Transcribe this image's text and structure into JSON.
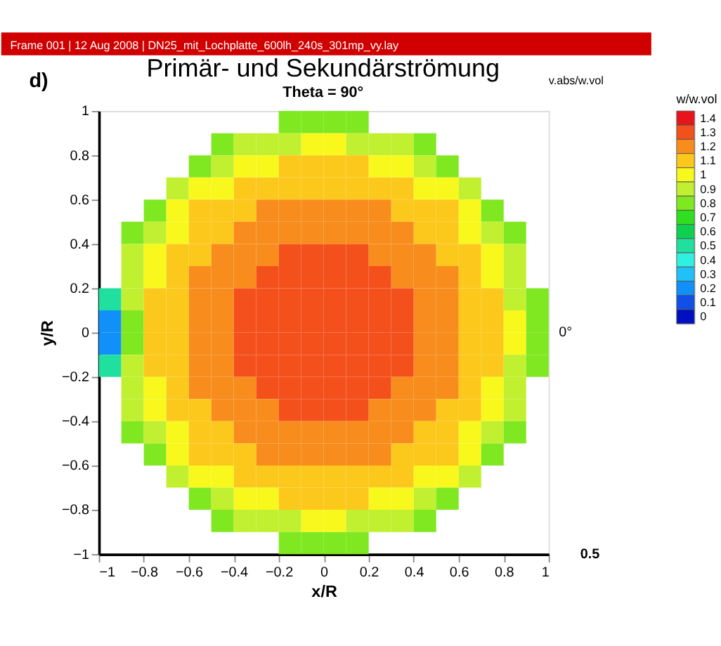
{
  "chart_data": {
    "type": "heatmap",
    "title": "Primär- und Sekundärströmung",
    "subtitle": "Theta = 90°",
    "xlabel": "x/R",
    "ylabel": "y/R",
    "clabel": "w/w.vol",
    "annotations": [
      "Frame 001 | 12 Aug 2008 | DN25_mit_Lochplatte_600lh_240s_301mp_vy.lay",
      "d)",
      "0°",
      "v.abs/w.vol",
      "0.5"
    ],
    "x": [
      -0.95,
      -0.85,
      -0.75,
      -0.65,
      -0.55,
      -0.45,
      -0.35,
      -0.25,
      -0.15,
      -0.05,
      0.05,
      0.15,
      0.25,
      0.35,
      0.45,
      0.55,
      0.65,
      0.75,
      0.85,
      0.95
    ],
    "y": [
      0.95,
      0.85,
      0.75,
      0.65,
      0.55,
      0.45,
      0.35,
      0.25,
      0.15,
      0.05,
      -0.05,
      -0.15,
      -0.25,
      -0.35,
      -0.45,
      -0.55,
      -0.65,
      -0.75,
      -0.85,
      -0.95
    ],
    "cells": [
      [
        null,
        null,
        null,
        null,
        null,
        null,
        null,
        null,
        0.8,
        0.8,
        0.8,
        0.8,
        null,
        null,
        null,
        null,
        null,
        null,
        null,
        null
      ],
      [
        null,
        null,
        null,
        null,
        null,
        0.8,
        0.9,
        0.9,
        0.9,
        1.0,
        1.0,
        0.9,
        0.9,
        0.9,
        0.8,
        null,
        null,
        null,
        null,
        null
      ],
      [
        null,
        null,
        null,
        null,
        0.8,
        0.9,
        1.0,
        1.0,
        1.1,
        1.1,
        1.1,
        1.1,
        1.0,
        1.0,
        0.9,
        0.8,
        null,
        null,
        null,
        null
      ],
      [
        null,
        null,
        null,
        0.9,
        1.0,
        1.0,
        1.1,
        1.1,
        1.1,
        1.1,
        1.1,
        1.1,
        1.1,
        1.1,
        1.0,
        1.0,
        0.9,
        null,
        null,
        null
      ],
      [
        null,
        null,
        0.8,
        1.0,
        1.1,
        1.1,
        1.1,
        1.2,
        1.2,
        1.2,
        1.2,
        1.2,
        1.2,
        1.1,
        1.1,
        1.1,
        1.0,
        0.8,
        null,
        null
      ],
      [
        null,
        0.8,
        0.9,
        1.0,
        1.1,
        1.1,
        1.2,
        1.2,
        1.2,
        1.2,
        1.2,
        1.2,
        1.2,
        1.2,
        1.1,
        1.1,
        1.0,
        0.9,
        0.8,
        null
      ],
      [
        null,
        0.9,
        1.0,
        1.1,
        1.1,
        1.2,
        1.2,
        1.2,
        1.3,
        1.3,
        1.3,
        1.3,
        1.2,
        1.2,
        1.2,
        1.1,
        1.1,
        1.0,
        0.9,
        null
      ],
      [
        null,
        0.9,
        1.0,
        1.1,
        1.2,
        1.2,
        1.2,
        1.3,
        1.3,
        1.3,
        1.3,
        1.3,
        1.3,
        1.2,
        1.2,
        1.2,
        1.1,
        1.0,
        0.9,
        null
      ],
      [
        0.5,
        0.9,
        1.1,
        1.1,
        1.2,
        1.2,
        1.3,
        1.3,
        1.3,
        1.3,
        1.3,
        1.3,
        1.3,
        1.3,
        1.2,
        1.2,
        1.1,
        1.1,
        0.9,
        0.8
      ],
      [
        0.2,
        0.8,
        1.1,
        1.1,
        1.2,
        1.2,
        1.3,
        1.3,
        1.3,
        1.3,
        1.3,
        1.3,
        1.3,
        1.3,
        1.2,
        1.2,
        1.1,
        1.1,
        1.0,
        0.8
      ],
      [
        0.2,
        0.8,
        1.1,
        1.1,
        1.2,
        1.2,
        1.3,
        1.3,
        1.3,
        1.3,
        1.3,
        1.3,
        1.3,
        1.3,
        1.2,
        1.2,
        1.1,
        1.1,
        1.0,
        0.8
      ],
      [
        0.5,
        0.9,
        1.1,
        1.1,
        1.2,
        1.2,
        1.3,
        1.3,
        1.3,
        1.3,
        1.3,
        1.3,
        1.3,
        1.3,
        1.2,
        1.2,
        1.1,
        1.1,
        0.9,
        0.8
      ],
      [
        null,
        0.9,
        1.0,
        1.1,
        1.2,
        1.2,
        1.2,
        1.3,
        1.3,
        1.3,
        1.3,
        1.3,
        1.3,
        1.2,
        1.2,
        1.2,
        1.1,
        1.0,
        0.9,
        null
      ],
      [
        null,
        0.9,
        1.0,
        1.1,
        1.1,
        1.2,
        1.2,
        1.2,
        1.3,
        1.3,
        1.3,
        1.3,
        1.2,
        1.2,
        1.2,
        1.1,
        1.1,
        1.0,
        0.9,
        null
      ],
      [
        null,
        0.8,
        0.9,
        1.0,
        1.1,
        1.1,
        1.2,
        1.2,
        1.2,
        1.2,
        1.2,
        1.2,
        1.2,
        1.2,
        1.1,
        1.1,
        1.0,
        0.9,
        0.8,
        null
      ],
      [
        null,
        null,
        0.8,
        1.0,
        1.1,
        1.1,
        1.1,
        1.2,
        1.2,
        1.2,
        1.2,
        1.2,
        1.2,
        1.1,
        1.1,
        1.1,
        1.0,
        0.8,
        null,
        null
      ],
      [
        null,
        null,
        null,
        0.9,
        1.0,
        1.0,
        1.1,
        1.1,
        1.1,
        1.1,
        1.1,
        1.1,
        1.1,
        1.1,
        1.0,
        1.0,
        0.9,
        null,
        null,
        null
      ],
      [
        null,
        null,
        null,
        null,
        0.8,
        0.9,
        1.0,
        1.0,
        1.1,
        1.1,
        1.1,
        1.1,
        1.0,
        1.0,
        0.9,
        0.8,
        null,
        null,
        null,
        null
      ],
      [
        null,
        null,
        null,
        null,
        null,
        0.8,
        0.9,
        0.9,
        0.9,
        1.0,
        1.0,
        0.9,
        0.9,
        0.9,
        0.8,
        null,
        null,
        null,
        null,
        null
      ],
      [
        null,
        null,
        null,
        null,
        null,
        null,
        null,
        null,
        0.8,
        0.8,
        0.8,
        0.8,
        null,
        null,
        null,
        null,
        null,
        null,
        null,
        null
      ]
    ],
    "clim": [
      0,
      1.4
    ],
    "cticks": [
      0,
      0.1,
      0.2,
      0.3,
      0.4,
      0.5,
      0.6,
      0.7,
      0.8,
      0.9,
      1,
      1.1,
      1.2,
      1.3,
      1.4
    ],
    "xlim": [
      -1,
      1
    ],
    "ylim": [
      -1,
      1
    ],
    "xticks": [
      -1,
      -0.8,
      -0.6,
      -0.4,
      -0.2,
      0,
      0.2,
      0.4,
      0.6,
      0.8,
      1
    ],
    "yticks": [
      -1,
      -0.8,
      -0.6,
      -0.4,
      -0.2,
      0,
      0.2,
      0.4,
      0.6,
      0.8,
      1
    ],
    "grid": false
  }
}
